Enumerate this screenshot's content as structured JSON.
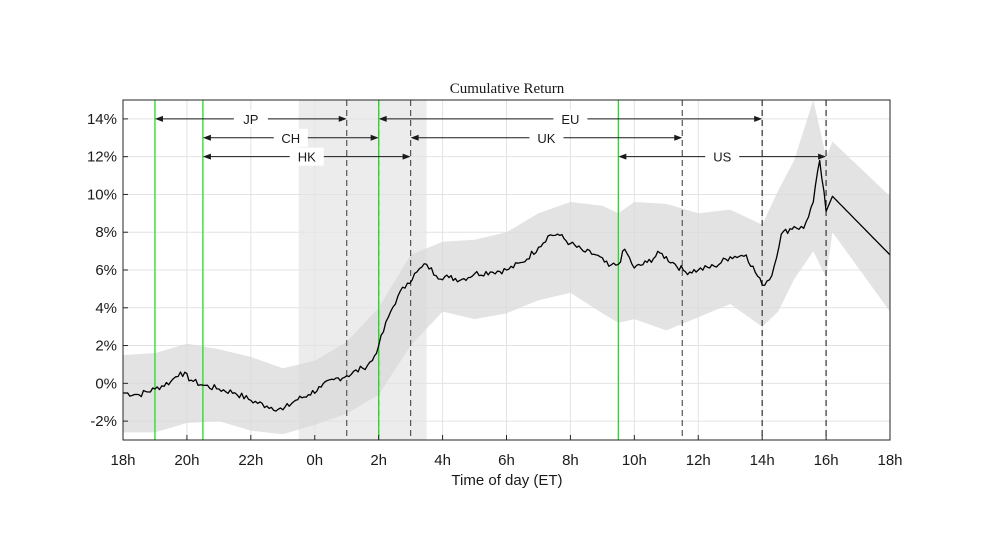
{
  "chart_data": {
    "type": "line",
    "title": "Cumulative Return",
    "xlabel": "Time of day (ET)",
    "ylabel": "",
    "xlim": [
      -6,
      18
    ],
    "ylim": [
      -3,
      15
    ],
    "grid": true,
    "x_tick_labels": [
      {
        "x": -6,
        "label": "18h"
      },
      {
        "x": -4,
        "label": "20h"
      },
      {
        "x": -2,
        "label": "22h"
      },
      {
        "x": 0,
        "label": "0h"
      },
      {
        "x": 2,
        "label": "2h"
      },
      {
        "x": 4,
        "label": "4h"
      },
      {
        "x": 6,
        "label": "6h"
      },
      {
        "x": 8,
        "label": "8h"
      },
      {
        "x": 10,
        "label": "10h"
      },
      {
        "x": 12,
        "label": "12h"
      },
      {
        "x": 14,
        "label": "14h"
      },
      {
        "x": 16,
        "label": "16h"
      },
      {
        "x": 18,
        "label": "18h"
      }
    ],
    "y_tick_labels": [
      {
        "y": -2,
        "label": "-2%"
      },
      {
        "y": 0,
        "label": "0%"
      },
      {
        "y": 2,
        "label": "2%"
      },
      {
        "y": 4,
        "label": "4%"
      },
      {
        "y": 6,
        "label": "6%"
      },
      {
        "y": 8,
        "label": "8%"
      },
      {
        "y": 10,
        "label": "10%"
      },
      {
        "y": 12,
        "label": "12%"
      },
      {
        "y": 14,
        "label": "14%"
      }
    ],
    "shaded_periods": [
      {
        "from": -0.5,
        "to": 3.5
      }
    ],
    "market_open_lines": [
      {
        "x": -5,
        "color": "#22dd22"
      },
      {
        "x": -3.5,
        "color": "#22dd22"
      },
      {
        "x": 2,
        "color": "#22dd22"
      },
      {
        "x": 9.5,
        "color": "#22dd22"
      }
    ],
    "market_close_lines": [
      {
        "x": 1,
        "color": "#555555"
      },
      {
        "x": 2,
        "color": "#555555"
      },
      {
        "x": 3,
        "color": "#555555"
      },
      {
        "x": 11.5,
        "color": "#555555"
      },
      {
        "x": 14,
        "color": "#333333"
      },
      {
        "x": 16,
        "color": "#333333"
      }
    ],
    "sessions": [
      {
        "name": "JP",
        "from": -5,
        "to": 1,
        "level": 14
      },
      {
        "name": "EU",
        "from": 2,
        "to": 14,
        "level": 14
      },
      {
        "name": "CH",
        "from": -3.5,
        "to": 2,
        "level": 13
      },
      {
        "name": "UK",
        "from": 3,
        "to": 11.5,
        "level": 13
      },
      {
        "name": "HK",
        "from": -3.5,
        "to": 3,
        "level": 12
      },
      {
        "name": "US",
        "from": 9.5,
        "to": 16,
        "level": 12
      }
    ],
    "series": [
      {
        "x": [
          -6,
          -5.5,
          -5,
          -4.5,
          -4.2,
          -3.8,
          -3.5,
          -3,
          -2.5,
          -2,
          -1.5,
          -1,
          -0.6,
          -0.2,
          0.2,
          0.6,
          1,
          1.5,
          1.8,
          2,
          2.3,
          2.6,
          2.9,
          3.2,
          3.5,
          3.8,
          4.2,
          4.6,
          5,
          5.5,
          6,
          6.5,
          7,
          7.3,
          7.6,
          8,
          8.4,
          8.8,
          9.2,
          9.5,
          9.7,
          10,
          10.4,
          10.8,
          11.2,
          11.6,
          12,
          12.5,
          13,
          13.5,
          14,
          14.3,
          14.6,
          15,
          15.3,
          15.6,
          15.8,
          16,
          16.2,
          18
        ],
        "y": [
          -0.5,
          -0.6,
          -0.3,
          0.1,
          0.6,
          0.1,
          -0.1,
          -0.3,
          -0.5,
          -0.9,
          -1.2,
          -1.4,
          -0.9,
          -0.6,
          -0.2,
          0.2,
          0.4,
          0.8,
          1.2,
          2.0,
          3.5,
          4.6,
          5.3,
          5.9,
          6.3,
          5.7,
          5.6,
          5.5,
          5.8,
          5.9,
          6.0,
          6.4,
          7.2,
          7.8,
          7.9,
          7.4,
          7.0,
          6.8,
          6.2,
          6.3,
          7.1,
          6.1,
          6.4,
          6.9,
          6.4,
          5.9,
          6.0,
          6.2,
          6.7,
          6.8,
          5.2,
          5.7,
          7.9,
          8.3,
          8.2,
          9.6,
          11.8,
          9.1,
          9.9,
          6.8
        ]
      }
    ],
    "confidence_band": {
      "x": [
        -6,
        -5,
        -4,
        -3,
        -2,
        -1,
        0,
        1,
        2,
        3,
        4,
        5,
        6,
        7,
        8,
        9,
        9.5,
        10,
        11,
        12,
        13,
        14,
        14.5,
        15,
        15.6,
        16,
        16.2,
        18
      ],
      "lower": [
        -2.6,
        -2.6,
        -2.1,
        -2.0,
        -2.5,
        -2.7,
        -2.2,
        -1.6,
        -0.6,
        2.0,
        3.8,
        3.4,
        3.7,
        4.4,
        4.8,
        3.7,
        3.2,
        3.4,
        2.8,
        3.5,
        4.2,
        3.0,
        3.8,
        5.5,
        7.0,
        5.6,
        8.0,
        3.8
      ],
      "upper": [
        1.5,
        1.6,
        2.1,
        1.8,
        1.4,
        0.8,
        1.2,
        2.2,
        4.0,
        6.8,
        7.5,
        7.6,
        8.0,
        9.0,
        9.6,
        9.4,
        9.0,
        9.6,
        9.5,
        9.0,
        9.2,
        8.4,
        10.2,
        11.8,
        15.0,
        12.0,
        12.8,
        9.9
      ]
    }
  }
}
